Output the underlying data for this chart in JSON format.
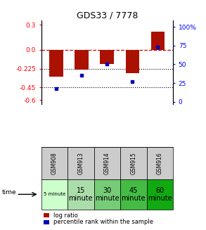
{
  "title": "GDS33 / 7778",
  "samples": [
    "GSM908",
    "GSM913",
    "GSM914",
    "GSM915",
    "GSM916"
  ],
  "time_labels": [
    "5 minute",
    "15\nminute",
    "30\nminute",
    "45\nminute",
    "60\nminute"
  ],
  "time_colors": [
    "#ccffcc",
    "#aaddaa",
    "#77cc77",
    "#44bb44",
    "#11aa11"
  ],
  "log_ratio": [
    -0.32,
    -0.235,
    -0.17,
    -0.28,
    0.22
  ],
  "percentile_rank": [
    18,
    35,
    50,
    27,
    73
  ],
  "left_yticks": [
    0.3,
    0.0,
    -0.225,
    -0.45,
    -0.6
  ],
  "right_yticks": [
    100,
    75,
    50,
    25,
    0
  ],
  "ylim_left": [
    -0.65,
    0.35
  ],
  "ylim_right": [
    -3.25,
    108.25
  ],
  "bar_color": "#aa1100",
  "dot_color": "#0000bb",
  "hline_color": "#cc0000",
  "sample_bg": "#cccccc"
}
